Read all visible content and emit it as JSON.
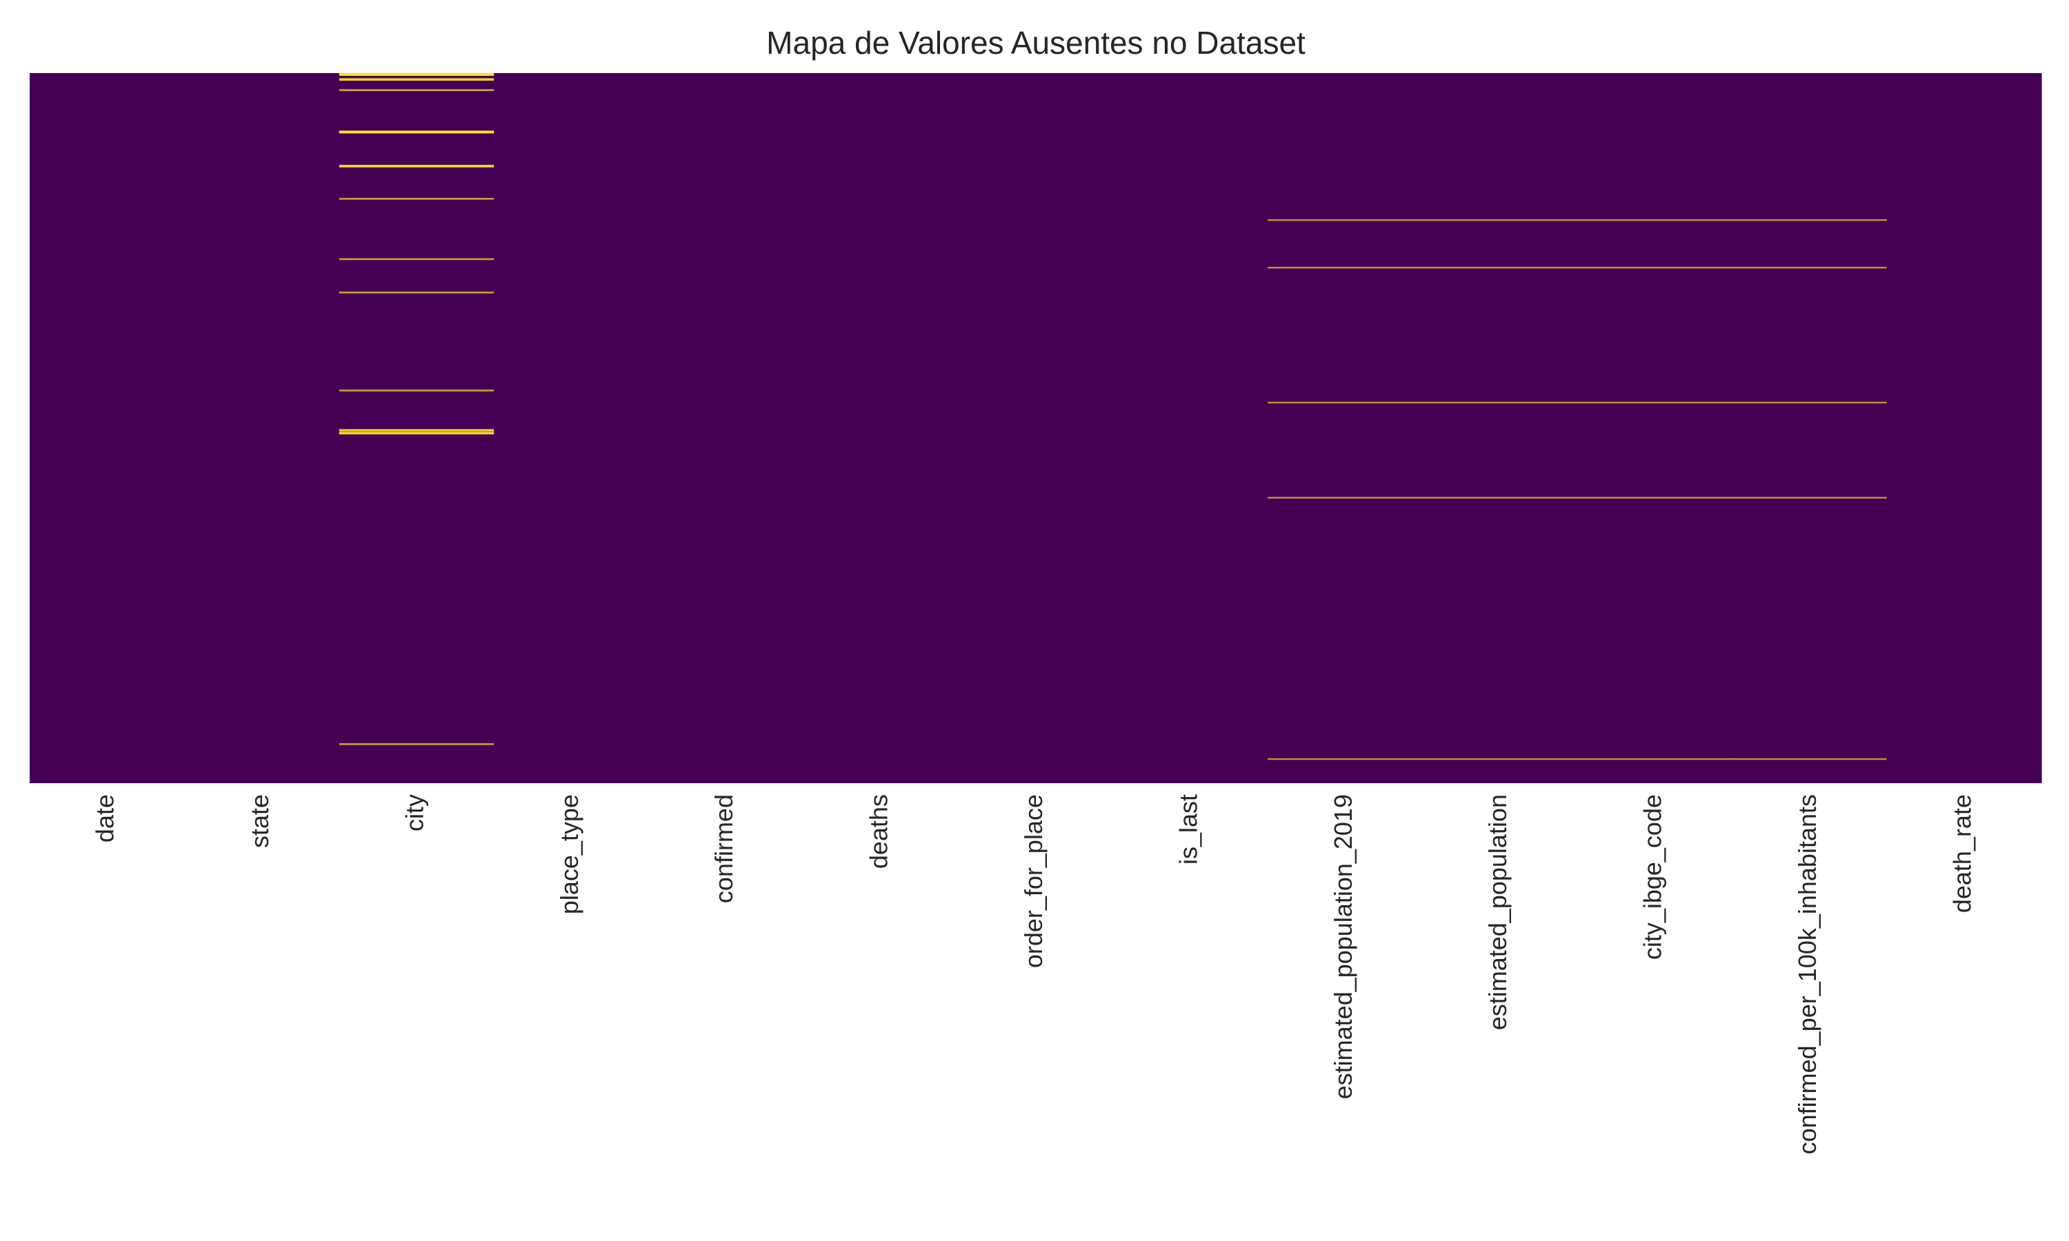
{
  "chart_data": {
    "type": "heatmap",
    "title": "Mapa de Valores Ausentes no Dataset",
    "xlabel": "",
    "ylabel": "",
    "legend": "none",
    "grid": false,
    "colors": {
      "present": "#440154",
      "missing": "#fde725"
    },
    "columns": [
      "date",
      "state",
      "city",
      "place_type",
      "confirmed",
      "deaths",
      "order_for_place",
      "is_last",
      "estimated_population_2019",
      "estimated_population",
      "city_ibge_code",
      "confirmed_per_100k_inhabitants",
      "death_rate"
    ],
    "row_range": [
      0,
      1
    ],
    "missing_rows": [
      {
        "column": "city",
        "positions": [
          0.002,
          0.009,
          0.024,
          0.083,
          0.131,
          0.177,
          0.262,
          0.309,
          0.447,
          0.503,
          0.507,
          0.945
        ],
        "strengths": [
          1,
          0.85,
          0.5,
          1,
          0.9,
          0.45,
          0.45,
          0.45,
          0.45,
          0.8,
          0.9,
          0.45
        ]
      },
      {
        "column": "estimated_population_2019",
        "positions": [
          0.207,
          0.274,
          0.464,
          0.598,
          0.966
        ],
        "strengths": [
          0.35,
          0.35,
          0.35,
          0.35,
          0.35
        ]
      },
      {
        "column": "estimated_population",
        "positions": [
          0.207,
          0.274,
          0.464,
          0.598,
          0.966
        ],
        "strengths": [
          0.35,
          0.35,
          0.35,
          0.35,
          0.35
        ]
      },
      {
        "column": "city_ibge_code",
        "positions": [
          0.207,
          0.274,
          0.464,
          0.598,
          0.966
        ],
        "strengths": [
          0.35,
          0.35,
          0.35,
          0.35,
          0.35
        ]
      },
      {
        "column": "confirmed_per_100k_inhabitants",
        "positions": [
          0.207,
          0.274,
          0.464,
          0.598,
          0.966
        ],
        "strengths": [
          0.35,
          0.35,
          0.35,
          0.35,
          0.35
        ]
      }
    ]
  }
}
